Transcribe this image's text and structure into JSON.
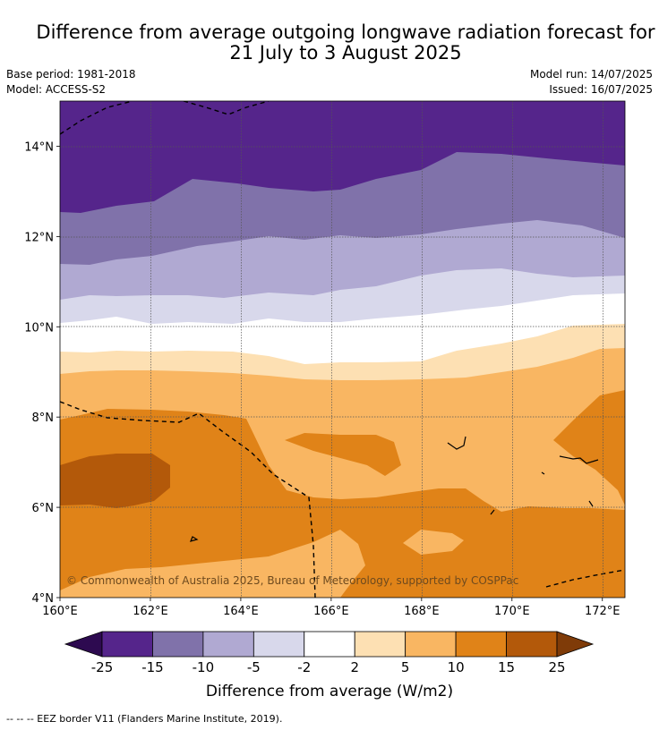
{
  "header": {
    "title_line1": "Difference from average outgoing longwave radiation forecast for",
    "title_line2": "21 July to 3 August 2025",
    "base_period": "Base period: 1981-2018",
    "model": "Model: ACCESS-S2",
    "model_run": "Model run: 14/07/2025",
    "issued": "Issued: 16/07/2025"
  },
  "chart_data": {
    "type": "heatmap",
    "map": "filled contour map",
    "x_ticks": [
      "160°E",
      "162°E",
      "164°E",
      "166°E",
      "168°E",
      "170°E",
      "172°E"
    ],
    "y_ticks": [
      "14°N",
      "12°N",
      "10°N",
      "8°N",
      "6°N",
      "4°N"
    ],
    "xlim": [
      160,
      172.5
    ],
    "ylim": [
      4,
      15
    ],
    "grid": true,
    "colorbar": {
      "label": "Difference from average (W/m2)",
      "tick_labels": [
        "-25",
        "-15",
        "-10",
        "-5",
        "-2",
        "2",
        "5",
        "10",
        "15",
        "25"
      ],
      "bins": [
        {
          "range": "< -25",
          "color": "#2d0a50"
        },
        {
          "range": "-25 to -15",
          "color": "#55258b"
        },
        {
          "range": "-15 to -10",
          "color": "#8072aa"
        },
        {
          "range": "-10 to -5",
          "color": "#b0a9d2"
        },
        {
          "range": "-5 to -2",
          "color": "#d8d8eb"
        },
        {
          "range": "-2 to 2",
          "color": "#ffffff"
        },
        {
          "range": "2 to 5",
          "color": "#fde0b3"
        },
        {
          "range": "5 to 10",
          "color": "#f9b662"
        },
        {
          "range": "10 to 15",
          "color": "#e08318"
        },
        {
          "range": "15 to 25",
          "color": "#b3590a"
        },
        {
          "range": "> 25",
          "color": "#7f3b08"
        }
      ]
    },
    "copyright": "© Commonwealth of Australia 2025, Bureau of Meteorology, supported by COSPPac"
  },
  "footer": {
    "legend_text": "--  --  -- EEZ border V11 (Flanders Marine Institute, 2019)."
  }
}
